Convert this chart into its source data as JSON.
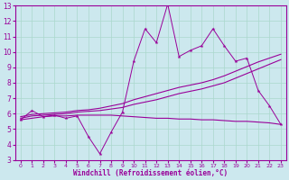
{
  "xlabel": "Windchill (Refroidissement éolien,°C)",
  "bg_color": "#cce8ee",
  "grid_color": "#aad8cc",
  "line_color": "#990099",
  "xlim": [
    -0.5,
    23.5
  ],
  "ylim": [
    3,
    13
  ],
  "xticks": [
    0,
    1,
    2,
    3,
    4,
    5,
    6,
    7,
    8,
    9,
    10,
    11,
    12,
    13,
    14,
    15,
    16,
    17,
    18,
    19,
    20,
    21,
    22,
    23
  ],
  "yticks": [
    3,
    4,
    5,
    6,
    7,
    8,
    9,
    10,
    11,
    12,
    13
  ],
  "series1_x": [
    0,
    1,
    2,
    3,
    4,
    5,
    6,
    7,
    8,
    9,
    10,
    11,
    12,
    13,
    14,
    15,
    16,
    17,
    18,
    19,
    20,
    21,
    22,
    23
  ],
  "series1_y": [
    5.6,
    6.2,
    5.8,
    5.9,
    5.7,
    5.85,
    4.5,
    3.4,
    4.8,
    6.1,
    9.4,
    11.5,
    10.6,
    13.1,
    9.7,
    10.1,
    10.4,
    11.5,
    10.4,
    9.4,
    9.6,
    7.5,
    6.5,
    5.3
  ],
  "series2_x": [
    0,
    1,
    2,
    3,
    4,
    5,
    6,
    7,
    8,
    9,
    10,
    11,
    12,
    13,
    14,
    15,
    16,
    17,
    18,
    19,
    20,
    21,
    22,
    23
  ],
  "series2_y": [
    5.7,
    5.85,
    5.9,
    5.95,
    6.0,
    6.1,
    6.15,
    6.2,
    6.3,
    6.4,
    6.6,
    6.75,
    6.9,
    7.1,
    7.3,
    7.45,
    7.6,
    7.8,
    8.0,
    8.3,
    8.6,
    8.9,
    9.2,
    9.5
  ],
  "series3_x": [
    0,
    1,
    2,
    3,
    4,
    5,
    6,
    7,
    8,
    9,
    10,
    11,
    12,
    13,
    14,
    15,
    16,
    17,
    18,
    19,
    20,
    21,
    22,
    23
  ],
  "series3_y": [
    5.8,
    5.95,
    6.0,
    6.05,
    6.1,
    6.2,
    6.25,
    6.35,
    6.5,
    6.65,
    6.9,
    7.1,
    7.3,
    7.5,
    7.7,
    7.85,
    8.0,
    8.2,
    8.45,
    8.75,
    9.05,
    9.35,
    9.6,
    9.85
  ],
  "series4_x": [
    0,
    1,
    2,
    3,
    4,
    5,
    6,
    7,
    8,
    9,
    10,
    11,
    12,
    13,
    14,
    15,
    16,
    17,
    18,
    19,
    20,
    21,
    22,
    23
  ],
  "series4_y": [
    5.6,
    5.7,
    5.8,
    5.85,
    5.85,
    5.9,
    5.9,
    5.9,
    5.9,
    5.85,
    5.8,
    5.75,
    5.7,
    5.7,
    5.65,
    5.65,
    5.6,
    5.6,
    5.55,
    5.5,
    5.5,
    5.45,
    5.4,
    5.3
  ]
}
